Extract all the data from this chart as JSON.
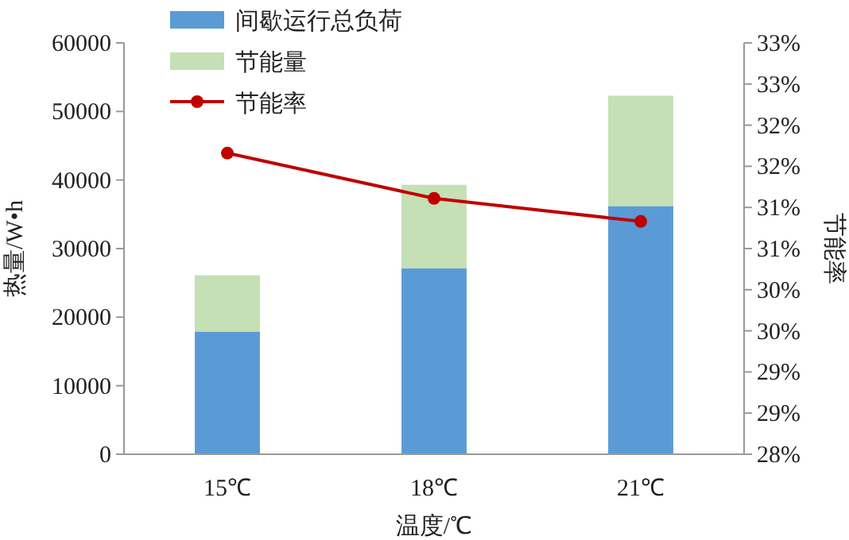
{
  "chart_data": {
    "type": "bar",
    "stacked": true,
    "xlabel": "温度/℃",
    "ylabel": "热量/W•h",
    "y2label": "节能率",
    "categories": [
      "15℃",
      "18℃",
      "21℃"
    ],
    "series": [
      {
        "name": "间歇运行总负荷",
        "color": "#5b9bd5",
        "values": [
          17900,
          27100,
          36200
        ]
      },
      {
        "name": "节能量",
        "color": "#c5e0b4",
        "values": [
          8200,
          12200,
          16100
        ]
      },
      {
        "name": "节能率",
        "type": "line",
        "axis": "y2",
        "color": "#c00000",
        "marker": "circle",
        "values": [
          31.66,
          31.11,
          30.83
        ]
      }
    ],
    "ylim": [
      0,
      60000
    ],
    "yticks": [
      0,
      10000,
      20000,
      30000,
      40000,
      50000,
      60000
    ],
    "y2lim": [
      28,
      33
    ],
    "y2ticks": [
      {
        "value": 28,
        "label": "28%"
      },
      {
        "value": 28.5,
        "label": "29%"
      },
      {
        "value": 29,
        "label": "29%"
      },
      {
        "value": 29.5,
        "label": "30%"
      },
      {
        "value": 30,
        "label": "30%"
      },
      {
        "value": 30.5,
        "label": "31%"
      },
      {
        "value": 31,
        "label": "31%"
      },
      {
        "value": 31.5,
        "label": "32%"
      },
      {
        "value": 32,
        "label": "32%"
      },
      {
        "value": 32.5,
        "label": "33%"
      },
      {
        "value": 33,
        "label": "33%"
      }
    ],
    "grid": false,
    "legend": "top left"
  }
}
